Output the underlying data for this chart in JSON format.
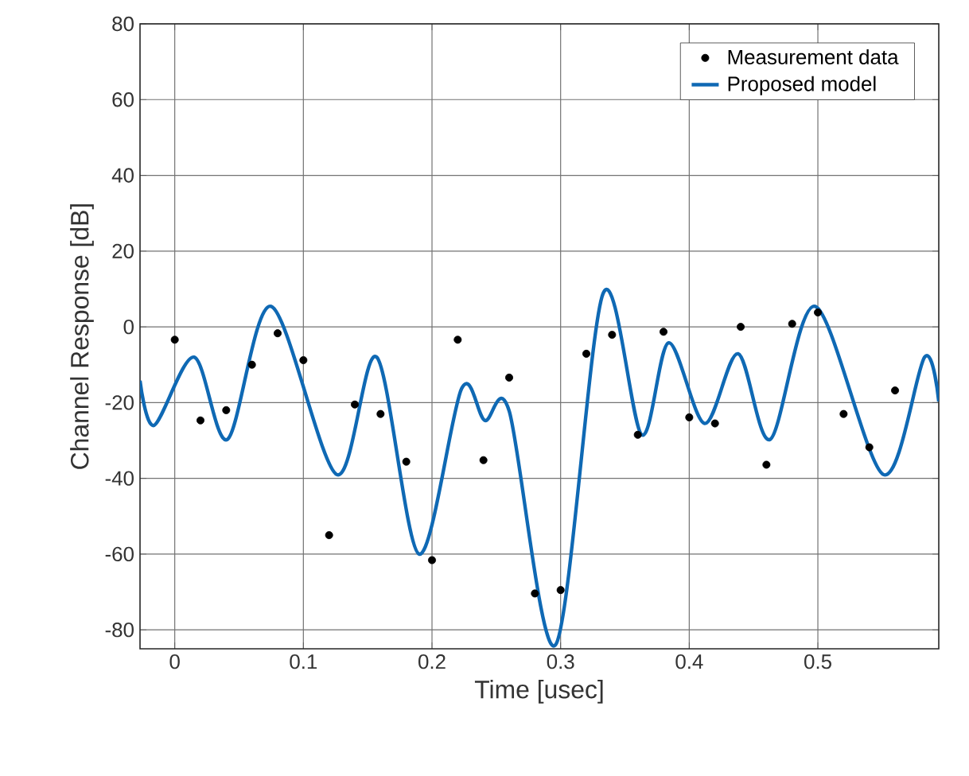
{
  "chart_data": {
    "type": "line",
    "xlabel": "Time [usec]",
    "ylabel": "Channel Response [dB]",
    "xlim": [
      -0.027,
      0.594
    ],
    "ylim": [
      -85,
      80
    ],
    "xticks": [
      0,
      0.1,
      0.2,
      0.3,
      0.4,
      0.5
    ],
    "yticks": [
      -80,
      -60,
      -40,
      -20,
      0,
      20,
      40,
      60,
      80
    ],
    "grid": true,
    "legend": "top right",
    "series": [
      {
        "name": "Measurement data",
        "type": "scatter",
        "marker": "circle",
        "color": "#000000",
        "x": [
          0,
          0.02,
          0.04,
          0.06,
          0.08,
          0.1,
          0.12,
          0.14,
          0.16,
          0.18,
          0.2,
          0.22,
          0.24,
          0.26,
          0.28,
          0.3,
          0.32,
          0.34,
          0.36,
          0.38,
          0.4,
          0.42,
          0.44,
          0.46,
          0.48,
          0.5,
          0.52,
          0.54,
          0.56
        ],
        "values": [
          -3.4,
          -24.7,
          -22,
          -10,
          -1.7,
          -8.8,
          -55,
          -20.5,
          -23,
          -35.6,
          -61.6,
          -3.4,
          -35.2,
          -13.4,
          -70.4,
          -69.5,
          -7.1,
          -2.1,
          -28.5,
          -1.3,
          -23.9,
          -25.5,
          0,
          -36.4,
          0.8,
          3.8,
          -23,
          -31.8,
          -16.8
        ]
      },
      {
        "name": "Proposed model",
        "marker": "none",
        "line_style": "solid",
        "color": "#0f69b4",
        "x": [
          -0.027,
          -0.016,
          0.015,
          0.041,
          0.075,
          0.126,
          0.157,
          0.19,
          0.223,
          0.241,
          0.26,
          0.296,
          0.333,
          0.363,
          0.384,
          0.412,
          0.438,
          0.463,
          0.498,
          0.551,
          0.583,
          0.594
        ],
        "values": [
          -14.2,
          -26,
          -8,
          -29.7,
          5.4,
          -39,
          -8,
          -60,
          -16.3,
          -24.7,
          -22.2,
          -84,
          8.8,
          -28.5,
          -4.2,
          -25.5,
          -7.1,
          -29.7,
          5.4,
          -39,
          -8,
          -19.7
        ]
      }
    ]
  }
}
